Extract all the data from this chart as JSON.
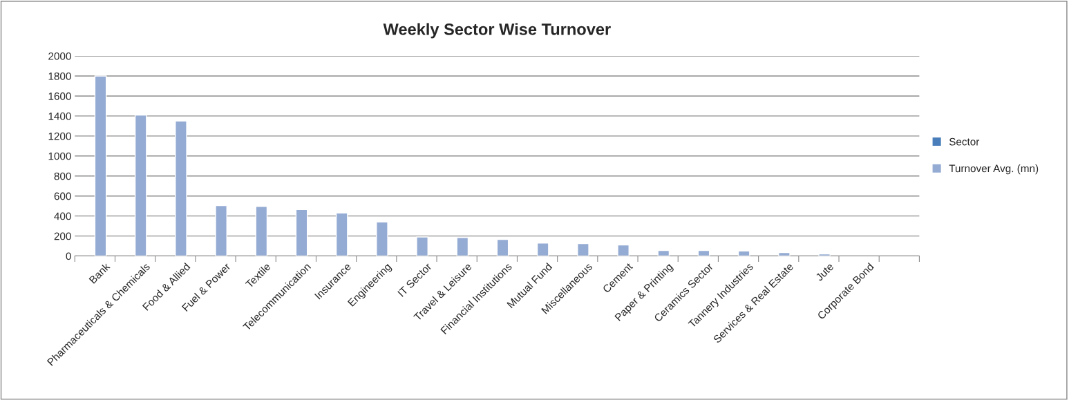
{
  "chart_data": {
    "type": "bar",
    "title": "Weekly Sector Wise Turnover",
    "categories": [
      "Bank",
      "Pharmaceuticals & Chemicals",
      "Food & Allied",
      "Fuel & Power",
      "Textile",
      "Telecommunication",
      "Insurance",
      "Engineering",
      "IT Sector",
      "Travel & Leisure",
      "Financial Institutions",
      "Mutual Fund",
      "Miscellaneous",
      "Cement",
      "Paper & Printing",
      "Ceramics Sector",
      "Tannery Industries",
      "Services & Real Estate",
      "Jute",
      "Corporate Bond",
      null
    ],
    "series": [
      {
        "name": "Sector",
        "color": "#4a7ebb",
        "values": [
          null,
          null,
          null,
          null,
          null,
          null,
          null,
          null,
          null,
          null,
          null,
          null,
          null,
          null,
          null,
          null,
          null,
          null,
          null,
          null,
          null
        ]
      },
      {
        "name": "Turnover Avg. (mn)",
        "color": "#94abd3",
        "values": [
          1800,
          1410,
          1350,
          505,
          495,
          465,
          430,
          340,
          190,
          185,
          165,
          130,
          125,
          110,
          55,
          55,
          50,
          35,
          20,
          null,
          null
        ]
      }
    ],
    "ylim": [
      0,
      2000
    ],
    "yticks": [
      0,
      200,
      400,
      600,
      800,
      1000,
      1200,
      1400,
      1600,
      1800,
      2000
    ],
    "grid": "y",
    "legend": "right"
  }
}
